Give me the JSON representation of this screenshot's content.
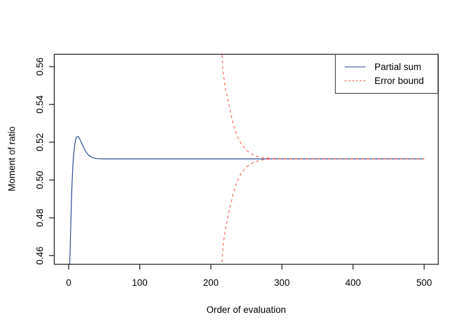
{
  "figure": {
    "background": "#ffffff",
    "xlabel": "Order of evaluation",
    "ylabel": "Moment of ratio"
  },
  "legend": {
    "position": "topright",
    "items": [
      {
        "label": "Partial sum",
        "color": "#2E4A96",
        "style": "solid"
      },
      {
        "label": "Error bound",
        "color": "#FA695A",
        "style": "dashed"
      }
    ]
  },
  "chart_data": {
    "type": "line",
    "title": "",
    "xlabel": "Order of evaluation",
    "ylabel": "Moment of ratio",
    "xlim": [
      -20.2,
      519.9
    ],
    "ylim": [
      0.4554,
      0.5665
    ],
    "xticks": [
      0,
      100,
      200,
      300,
      400,
      500
    ],
    "ytick_labels": [
      "0.46",
      "0.48",
      "0.50",
      "0.52",
      "0.54",
      "0.56"
    ],
    "grid": false,
    "legend_position": "topright",
    "converged_value": 0.5112,
    "series": [
      {
        "name": "Partial sum",
        "role": "partial-sum",
        "color": "#2E4A96",
        "dash": null,
        "points": [
          [
            0.5,
            0.43
          ],
          [
            1.5,
            0.456
          ],
          [
            2,
            0.462
          ],
          [
            2.5,
            0.469
          ],
          [
            3,
            0.476
          ],
          [
            3.5,
            0.483
          ],
          [
            4,
            0.49
          ],
          [
            4.5,
            0.4955
          ],
          [
            5,
            0.5005
          ],
          [
            5.5,
            0.5045
          ],
          [
            6,
            0.508
          ],
          [
            6.5,
            0.5108
          ],
          [
            7,
            0.5132
          ],
          [
            7.5,
            0.5152
          ],
          [
            8,
            0.517
          ],
          [
            8.5,
            0.5185
          ],
          [
            9,
            0.5197
          ],
          [
            9.5,
            0.5207
          ],
          [
            10,
            0.5215
          ],
          [
            10.5,
            0.5221
          ],
          [
            11,
            0.5225
          ],
          [
            11.5,
            0.5228
          ],
          [
            12,
            0.523
          ],
          [
            12.5,
            0.523
          ],
          [
            13,
            0.523
          ],
          [
            13.5,
            0.5229
          ],
          [
            14,
            0.5227
          ],
          [
            15,
            0.5221
          ],
          [
            16,
            0.5214
          ],
          [
            17,
            0.5206
          ],
          [
            18,
            0.5198
          ],
          [
            19,
            0.5189
          ],
          [
            20,
            0.5181
          ],
          [
            21,
            0.5173
          ],
          [
            22,
            0.5165
          ],
          [
            23,
            0.5158
          ],
          [
            24,
            0.5152
          ],
          [
            25,
            0.5146
          ],
          [
            26,
            0.5141
          ],
          [
            27,
            0.5136
          ],
          [
            28,
            0.5132
          ],
          [
            29,
            0.5129
          ],
          [
            30,
            0.5126
          ],
          [
            32,
            0.5121
          ],
          [
            34,
            0.5118
          ],
          [
            36,
            0.5116
          ],
          [
            38,
            0.5114
          ],
          [
            40,
            0.5113
          ],
          [
            43,
            0.5113
          ],
          [
            46,
            0.5112
          ],
          [
            50,
            0.5112
          ],
          [
            55,
            0.5112
          ],
          [
            60,
            0.5112
          ],
          [
            70,
            0.5112
          ],
          [
            80,
            0.5112
          ],
          [
            100,
            0.5112
          ],
          [
            120,
            0.5112
          ],
          [
            150,
            0.5112
          ],
          [
            180,
            0.5112
          ],
          [
            210,
            0.5112
          ],
          [
            240,
            0.5112
          ],
          [
            270,
            0.5112
          ],
          [
            300,
            0.5112
          ],
          [
            330,
            0.5112
          ],
          [
            360,
            0.5112
          ],
          [
            390,
            0.5112
          ],
          [
            420,
            0.5112
          ],
          [
            450,
            0.5112
          ],
          [
            475,
            0.5112
          ],
          [
            500,
            0.5112
          ]
        ]
      },
      {
        "name": "Error bound (upper)",
        "role": "error-bound-upper",
        "color": "#FA695A",
        "dash": "4 4",
        "points": [
          [
            215.4,
            0.572
          ],
          [
            216,
            0.564
          ],
          [
            216.5,
            0.561
          ],
          [
            217,
            0.5585
          ],
          [
            218,
            0.555
          ],
          [
            219,
            0.5523
          ],
          [
            220,
            0.5498
          ],
          [
            221,
            0.5477
          ],
          [
            222,
            0.5458
          ],
          [
            223,
            0.544
          ],
          [
            224,
            0.5422
          ],
          [
            225,
            0.5405
          ],
          [
            226,
            0.5388
          ],
          [
            227,
            0.5371
          ],
          [
            228,
            0.5354
          ],
          [
            229,
            0.5337
          ],
          [
            230,
            0.532
          ],
          [
            232,
            0.5291
          ],
          [
            234,
            0.5266
          ],
          [
            236,
            0.5244
          ],
          [
            238,
            0.5225
          ],
          [
            240,
            0.5209
          ],
          [
            242,
            0.5196
          ],
          [
            244,
            0.5185
          ],
          [
            246,
            0.5175
          ],
          [
            248,
            0.5166
          ],
          [
            250,
            0.5158
          ],
          [
            253,
            0.5149
          ],
          [
            256,
            0.5141
          ],
          [
            259,
            0.5135
          ],
          [
            262,
            0.513
          ],
          [
            266,
            0.5125
          ],
          [
            270,
            0.5121
          ],
          [
            275,
            0.5118
          ],
          [
            280,
            0.5116
          ],
          [
            286,
            0.5114
          ],
          [
            292,
            0.5114
          ],
          [
            300,
            0.5113
          ],
          [
            320,
            0.5113
          ],
          [
            350,
            0.5113
          ],
          [
            400,
            0.5113
          ],
          [
            450,
            0.5113
          ],
          [
            500,
            0.5113
          ]
        ]
      },
      {
        "name": "Error bound (lower)",
        "role": "error-bound-lower",
        "color": "#FA695A",
        "dash": "4 4",
        "points": [
          [
            215.4,
            0.4506
          ],
          [
            216,
            0.4586
          ],
          [
            216.5,
            0.4616
          ],
          [
            217,
            0.4641
          ],
          [
            218,
            0.4676
          ],
          [
            219,
            0.4703
          ],
          [
            220,
            0.4728
          ],
          [
            221,
            0.4749
          ],
          [
            222,
            0.4768
          ],
          [
            223,
            0.4786
          ],
          [
            224,
            0.4804
          ],
          [
            225,
            0.4821
          ],
          [
            226,
            0.4838
          ],
          [
            227,
            0.4855
          ],
          [
            228,
            0.4872
          ],
          [
            229,
            0.4889
          ],
          [
            230,
            0.4906
          ],
          [
            232,
            0.4935
          ],
          [
            234,
            0.496
          ],
          [
            236,
            0.4982
          ],
          [
            238,
            0.5001
          ],
          [
            240,
            0.5017
          ],
          [
            242,
            0.503
          ],
          [
            244,
            0.5041
          ],
          [
            246,
            0.5051
          ],
          [
            248,
            0.506
          ],
          [
            250,
            0.5068
          ],
          [
            253,
            0.5077
          ],
          [
            256,
            0.5085
          ],
          [
            259,
            0.5091
          ],
          [
            262,
            0.5096
          ],
          [
            266,
            0.5101
          ],
          [
            270,
            0.5105
          ],
          [
            275,
            0.5108
          ],
          [
            280,
            0.511
          ],
          [
            286,
            0.5112
          ],
          [
            292,
            0.5112
          ],
          [
            300,
            0.5113
          ],
          [
            320,
            0.5113
          ],
          [
            350,
            0.5113
          ],
          [
            400,
            0.5113
          ],
          [
            450,
            0.5113
          ],
          [
            500,
            0.5113
          ]
        ]
      }
    ]
  }
}
